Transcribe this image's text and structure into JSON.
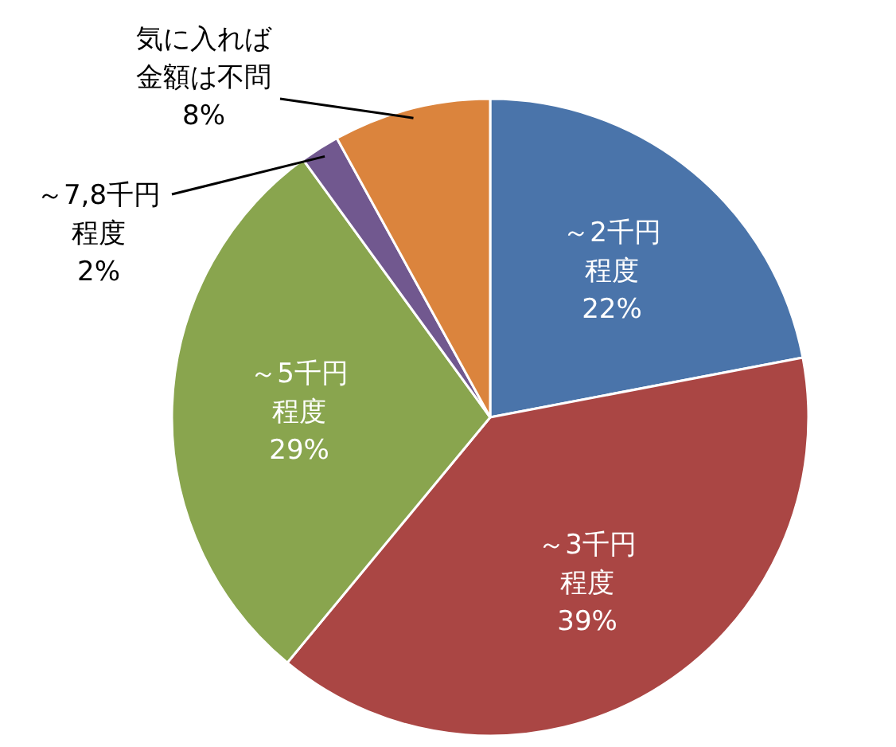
{
  "chart_data": {
    "type": "pie",
    "categories": [
      "～2千円程度",
      "～3千円程度",
      "～5千円程度",
      "～7,8千円程度",
      "気に入れば金額は不問"
    ],
    "values": [
      22,
      39,
      29,
      2,
      8
    ],
    "value_labels": [
      "22%",
      "39%",
      "29%",
      "2%",
      "8%"
    ],
    "colors": [
      "#4a74aa",
      "#aa4644",
      "#89a54e",
      "#71588f",
      "#db843d"
    ]
  }
}
